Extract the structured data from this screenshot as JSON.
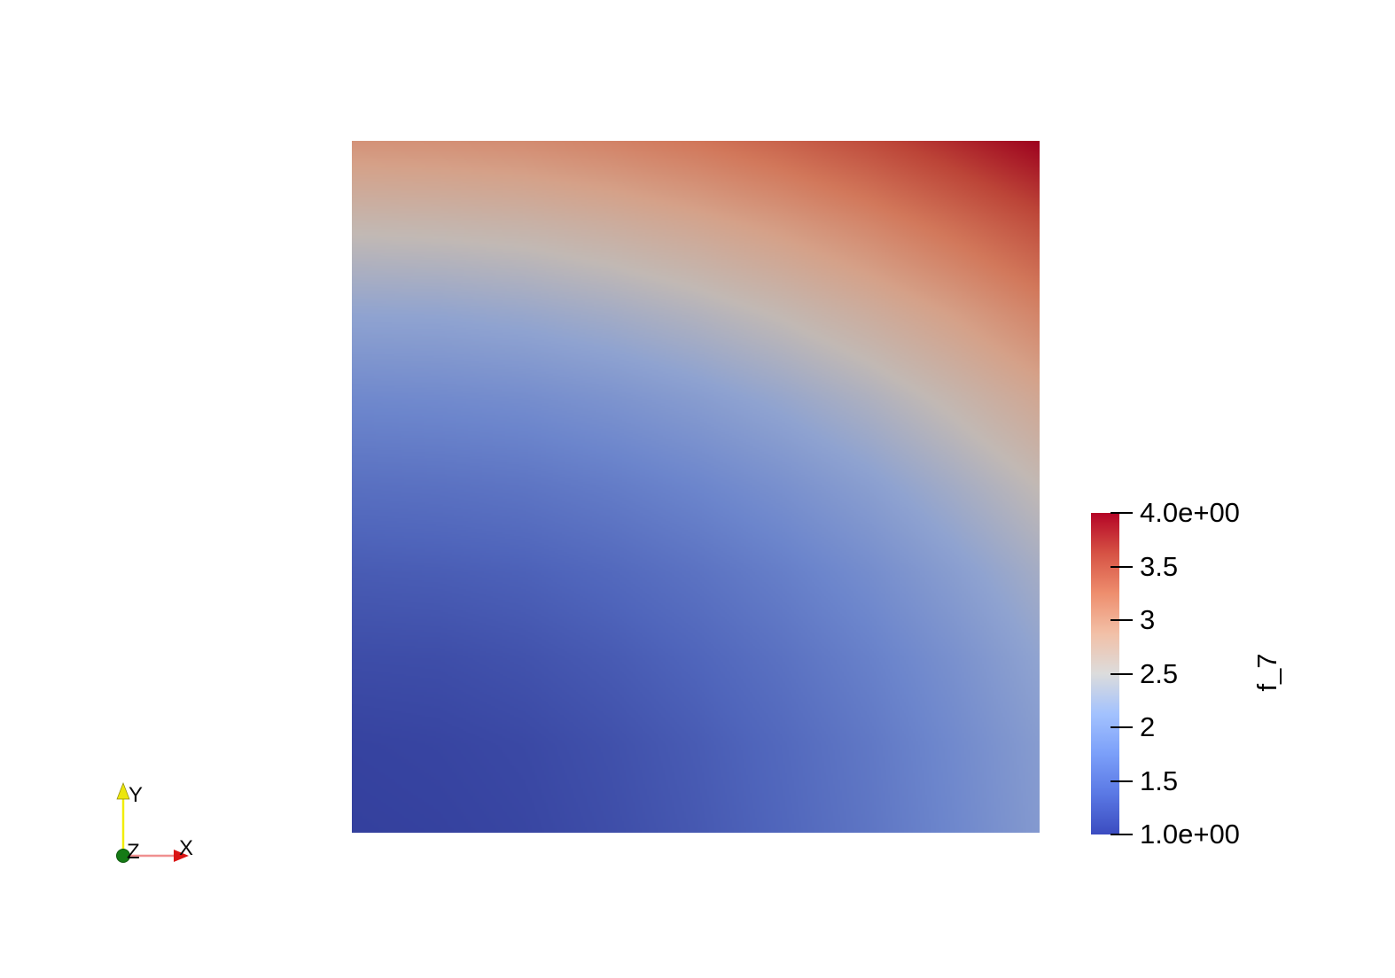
{
  "view": {
    "background_color": "#ffffff",
    "type": "3d-render-view"
  },
  "chart_data": {
    "type": "heatmap",
    "title": "f_7",
    "field_name": "f_7",
    "range": [
      1.0,
      4.0
    ],
    "x_range": [
      0,
      1
    ],
    "y_range": [
      0,
      1
    ],
    "grid_note": "values sampled on uniform 9x9 grid; rows ordered top (y=1) to bottom (y=0), columns left (x=0) to right (x=1); field matches f = 1 + x^2 + 2y^2",
    "values": [
      [
        3.0,
        3.02,
        3.06,
        3.14,
        3.25,
        3.39,
        3.56,
        3.77,
        4.0
      ],
      [
        2.53,
        2.55,
        2.59,
        2.67,
        2.78,
        2.92,
        3.09,
        3.3,
        3.53
      ],
      [
        2.13,
        2.14,
        2.19,
        2.27,
        2.38,
        2.52,
        2.69,
        2.89,
        3.13
      ],
      [
        1.78,
        1.8,
        1.84,
        1.92,
        2.03,
        2.17,
        2.34,
        2.55,
        2.78
      ],
      [
        1.5,
        1.52,
        1.56,
        1.64,
        1.75,
        1.89,
        2.06,
        2.27,
        2.5
      ],
      [
        1.28,
        1.3,
        1.34,
        1.42,
        1.53,
        1.67,
        1.84,
        2.05,
        2.28
      ],
      [
        1.13,
        1.14,
        1.19,
        1.27,
        1.38,
        1.52,
        1.69,
        1.89,
        2.13
      ],
      [
        1.03,
        1.05,
        1.09,
        1.17,
        1.28,
        1.42,
        1.59,
        1.8,
        2.03
      ],
      [
        1.0,
        1.02,
        1.06,
        1.14,
        1.25,
        1.39,
        1.56,
        1.77,
        2.0
      ]
    ],
    "colormap_name": "cool-to-warm-diverging",
    "colormap_stops": [
      [
        0.0,
        "#3b4cc0"
      ],
      [
        0.125,
        "#5a78e4"
      ],
      [
        0.25,
        "#7b9ff9"
      ],
      [
        0.375,
        "#a3c2fe"
      ],
      [
        0.5,
        "#dcdcdc"
      ],
      [
        0.625,
        "#f2c0a7"
      ],
      [
        0.75,
        "#ee8e6e"
      ],
      [
        0.875,
        "#d65244"
      ],
      [
        1.0,
        "#b40426"
      ]
    ],
    "legend_position": "right",
    "grid_lines": "off"
  },
  "colorbar": {
    "title": "f_7",
    "orientation": "vertical",
    "ticks": [
      {
        "value": 4.0,
        "label": "4.0e+00"
      },
      {
        "value": 3.5,
        "label": "3.5"
      },
      {
        "value": 3.0,
        "label": "3"
      },
      {
        "value": 2.5,
        "label": "2.5"
      },
      {
        "value": 2.0,
        "label": "2"
      },
      {
        "value": 1.5,
        "label": "1.5"
      },
      {
        "value": 1.0,
        "label": "1.0e+00"
      }
    ],
    "tick_color": "#000000",
    "label_color": "#000000"
  },
  "axes_widget": {
    "x_label": "X",
    "y_label": "Y",
    "z_label": "Z",
    "x_color": "#d91414",
    "x_shaft_color": "#f08f8f",
    "y_color": "#ece60c",
    "z_color": "#157a15",
    "label_color": "#0b0b0b"
  }
}
